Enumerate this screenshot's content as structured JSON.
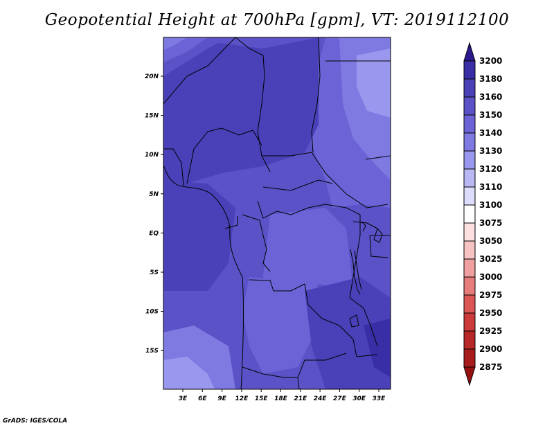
{
  "title": "Geopotential Height at 700hPa [gpm], VT: 2019112100",
  "credit": "GrADS: IGES/COLA",
  "map": {
    "lat_labels": [
      "20N",
      "15N",
      "10N",
      "5N",
      "EQ",
      "5S",
      "10S",
      "15S"
    ],
    "lon_labels": [
      "3E",
      "6E",
      "9E",
      "12E",
      "15E",
      "18E",
      "21E",
      "24E",
      "27E",
      "30E",
      "33E"
    ],
    "field_levels": [
      "3120",
      "3130",
      "3140",
      "3150",
      "3160",
      "3180"
    ]
  },
  "colorbar": {
    "levels": [
      "3200",
      "3180",
      "3160",
      "3150",
      "3140",
      "3130",
      "3120",
      "3110",
      "3100",
      "3075",
      "3050",
      "3025",
      "3000",
      "2975",
      "2950",
      "2925",
      "2900",
      "2875"
    ],
    "colors": [
      "#2a1a8e",
      "#3a2ea6",
      "#4a40b8",
      "#5c52c8",
      "#6c64d6",
      "#7f7ae2",
      "#9a97ee",
      "#b9b8f5",
      "#dcdcfb",
      "#ffffff",
      "#fce0e0",
      "#f6c2c2",
      "#f0a0a0",
      "#e67c7c",
      "#dc5656",
      "#cc3a3a",
      "#b92828",
      "#a81c1c",
      "#951010"
    ]
  }
}
